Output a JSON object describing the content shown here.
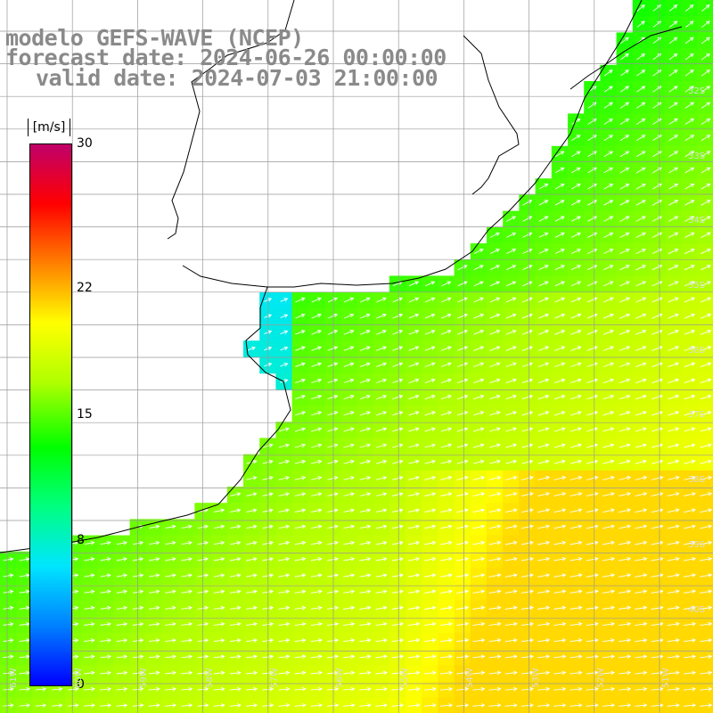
{
  "title": {
    "line1": "modelo GEFS-WAVE (NCEP)",
    "line2": "forecast date: 2024-06-26 00:00:00",
    "line3": "valid date: 2024-07-03 21:00:00"
  },
  "colorbar": {
    "unit": "[m/s]",
    "min": 0,
    "max": 30,
    "ticks": [
      "30",
      "22",
      "15",
      "8",
      "0"
    ],
    "tick_values": [
      30,
      22,
      15,
      8,
      0
    ],
    "colors": [
      "#0000ff",
      "#0080ff",
      "#00e5ff",
      "#00ff80",
      "#00ff00",
      "#b0ff00",
      "#ffff00",
      "#ff8000",
      "#ff0000",
      "#c0006a"
    ]
  },
  "map": {
    "field": "wind speed with direction arrows",
    "lat_labels": [
      "32S",
      "33S",
      "34S",
      "35S",
      "36S",
      "37S",
      "38S",
      "39S",
      "40S"
    ],
    "lon_labels": [
      "61W",
      "60W",
      "59W",
      "58W",
      "57W",
      "56W",
      "55W",
      "54W",
      "53W",
      "52W",
      "51W"
    ],
    "land_color": "#ffffff",
    "grid_color": "#999999",
    "coast_color": "#000000"
  }
}
